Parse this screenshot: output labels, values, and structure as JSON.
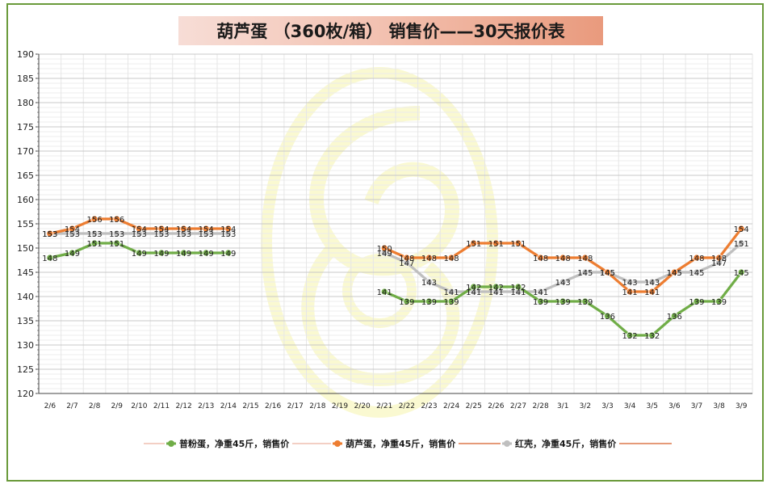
{
  "chart_data": {
    "type": "line",
    "title": "葫芦蛋 （360枚/箱） 销售价——30天报价表",
    "ylim": [
      120,
      190
    ],
    "ytick_step": 5,
    "grid": true,
    "legend_position": "bottom",
    "categories": [
      "2/6",
      "2/7",
      "2/8",
      "2/9",
      "2/10",
      "2/11",
      "2/12",
      "2/13",
      "2/14",
      "2/15",
      "2/16",
      "2/17",
      "2/18",
      "2/19",
      "2/20",
      "2/21",
      "2/22",
      "2/23",
      "2/24",
      "2/25",
      "2/26",
      "2/27",
      "2/28",
      "3/1",
      "3/2",
      "3/3",
      "3/4",
      "3/5",
      "3/6",
      "3/7",
      "3/8",
      "3/9"
    ],
    "series": [
      {
        "name": "普粉蛋，净重45斤，销售价",
        "color": "#70ad47",
        "values": [
          148,
          149,
          151,
          151,
          149,
          149,
          149,
          149,
          149,
          null,
          null,
          null,
          null,
          null,
          null,
          141,
          139,
          139,
          139,
          142,
          142,
          142,
          139,
          139,
          139,
          136,
          132,
          132,
          136,
          139,
          139,
          145
        ]
      },
      {
        "name": "葫芦蛋，净重45斤，销售价",
        "color": "#ed7d31",
        "values": [
          153,
          154,
          156,
          156,
          154,
          154,
          154,
          154,
          154,
          null,
          null,
          null,
          null,
          null,
          null,
          150,
          148,
          148,
          148,
          151,
          151,
          151,
          148,
          148,
          148,
          145,
          141,
          141,
          145,
          148,
          148,
          154
        ]
      },
      {
        "name": "红壳，净重45斤，销售价",
        "color": "#bfbfbf",
        "values": [
          153,
          153,
          153,
          153,
          153,
          153,
          153,
          153,
          153,
          null,
          null,
          null,
          null,
          null,
          null,
          149,
          147,
          143,
          141,
          141,
          141,
          141,
          141,
          143,
          145,
          145,
          143,
          143,
          145,
          145,
          147,
          151
        ]
      }
    ]
  }
}
